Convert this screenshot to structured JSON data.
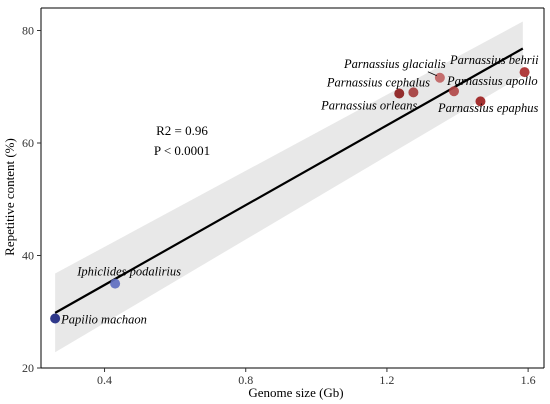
{
  "chart_data": {
    "type": "scatter",
    "xlabel": "Genome size (Gb)",
    "ylabel": "Repetitive content (%)",
    "xlim": [
      0.22,
      1.645
    ],
    "ylim": [
      20,
      84
    ],
    "x_ticks": [
      0.4,
      0.8,
      1.2,
      1.6
    ],
    "x_tick_labels": [
      "0.4",
      "0.8",
      "1.2",
      "1.6"
    ],
    "y_ticks": [
      20,
      40,
      60,
      80
    ],
    "y_tick_labels": [
      "20",
      "40",
      "60",
      "80"
    ],
    "grid": false,
    "annotations": [
      "R2 = 0.96",
      "P < 0.0001"
    ],
    "regression": {
      "x": [
        0.26,
        1.585
      ],
      "y": [
        29.8,
        76.8
      ],
      "ci_lower": [
        22.8,
        72.0
      ],
      "ci_upper": [
        36.8,
        81.6
      ]
    },
    "points": [
      {
        "label": "Papilio machaon",
        "x": 0.26,
        "y": 28.8,
        "color": "#1a237e"
      },
      {
        "label": "Iphiclides podalirius",
        "x": 0.43,
        "y": 35.0,
        "color": "#5c6bc0"
      },
      {
        "label": "Parnassius orleans",
        "x": 1.235,
        "y": 68.8,
        "color": "#8b1a1a"
      },
      {
        "label": "Parnassius cephalus",
        "x": 1.275,
        "y": 69.0,
        "color": "#a33a3a"
      },
      {
        "label": "Parnassius glacialis",
        "x": 1.35,
        "y": 71.6,
        "color": "#c06060"
      },
      {
        "label": "Parnassius apollo",
        "x": 1.39,
        "y": 69.2,
        "color": "#b04545"
      },
      {
        "label": "Parnassius epaphus",
        "x": 1.465,
        "y": 67.4,
        "color": "#9b1c1c"
      },
      {
        "label": "Parnassius behrii",
        "x": 1.59,
        "y": 72.6,
        "color": "#a82828"
      }
    ]
  }
}
